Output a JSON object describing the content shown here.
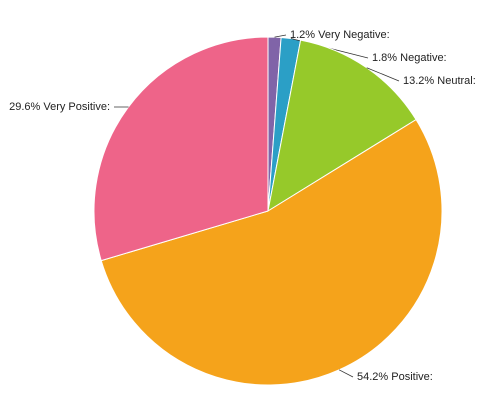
{
  "chart_data": {
    "type": "pie",
    "categories": [
      "Very Negative:",
      "Negative:",
      "Neutral:",
      "Positive:",
      "Very Positive:"
    ],
    "values": [
      1.2,
      1.8,
      13.2,
      54.2,
      29.6
    ],
    "value_labels": [
      "1.2%",
      "1.8%",
      "13.2%",
      "54.2%",
      "29.6%"
    ],
    "colors": [
      "#8064a8",
      "#2b9fc6",
      "#96c92a",
      "#f5a31b",
      "#ee6489"
    ]
  }
}
